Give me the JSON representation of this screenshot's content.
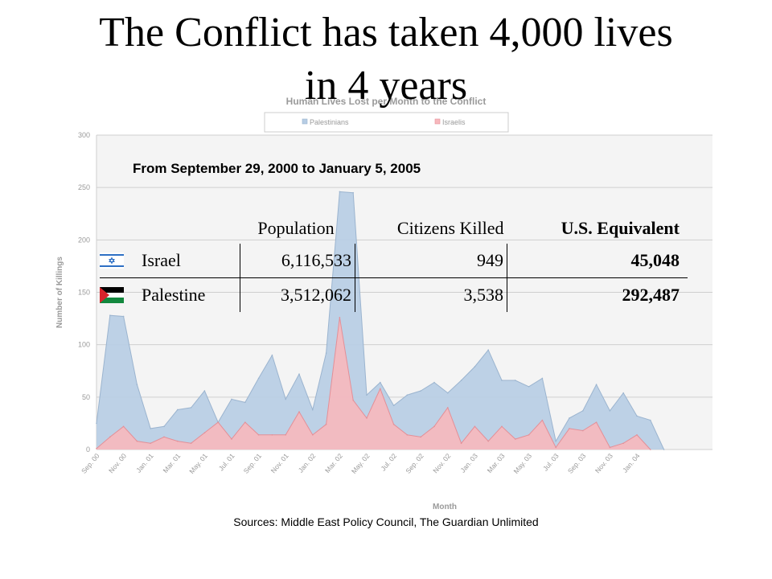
{
  "slide": {
    "title_line1": "The Conflict has taken 4,000 lives",
    "title_line2": "in 4 years",
    "period": "From September 29, 2000 to January 5, 2005",
    "sources": "Sources: Middle East Policy Council, The Guardian Unlimited"
  },
  "table": {
    "headers": [
      "Population",
      "Citizens Killed",
      "U.S. Equivalent"
    ],
    "rows": [
      {
        "country": "Israel",
        "flag": "israel-flag-icon",
        "population": "6,116,533",
        "killed": "949",
        "us_equivalent": "45,048"
      },
      {
        "country": "Palestine",
        "flag": "palestine-flag-icon",
        "population": "3,512,062",
        "killed": "3,538",
        "us_equivalent": "292,487"
      }
    ]
  },
  "chart_data": {
    "type": "area",
    "title": "Human Lives Lost per Month to the Conflict",
    "xlabel": "Month",
    "ylabel": "Number of Killings",
    "ylim": [
      0,
      300
    ],
    "yticks": [
      0,
      50,
      100,
      150,
      200,
      250,
      300
    ],
    "grid": true,
    "legend_position": "top",
    "x": [
      "Sep. 00",
      "Oct. 00",
      "Nov. 00",
      "Dec. 00",
      "Jan. 01",
      "Feb. 01",
      "Mar. 01",
      "Apr. 01",
      "May. 01",
      "Jun. 01",
      "Jul. 01",
      "Aug. 01",
      "Sep. 01",
      "Oct. 01",
      "Nov. 01",
      "Dec. 01",
      "Jan. 02",
      "Feb. 02",
      "Mar. 02",
      "Apr. 02",
      "May. 02",
      "Jun. 02",
      "Jul. 02",
      "Aug. 02",
      "Sep. 02",
      "Oct. 02",
      "Nov. 02",
      "Dec. 02",
      "Jan. 03",
      "Feb. 03",
      "Mar. 03",
      "Apr. 03",
      "May. 03",
      "Jun. 03",
      "Jul. 03",
      "Aug. 03",
      "Sep. 03",
      "Oct. 03",
      "Nov. 03",
      "Dec. 03",
      "Jan. 04",
      "Feb. 04",
      "Mar. 04",
      "Apr. 04",
      "May. 04"
    ],
    "xtick_labels": [
      "Sep. 00",
      "Nov. 00",
      "Jan. 01",
      "Mar. 01",
      "May. 01",
      "Jul. 01",
      "Sep. 01",
      "Nov. 01",
      "Jan. 02",
      "Mar. 02",
      "May. 02",
      "Jul. 02",
      "Sep. 02",
      "Nov. 02",
      "Jan. 03",
      "Mar. 03",
      "May. 03",
      "Jul. 03",
      "Sep. 03",
      "Nov. 03",
      "Jan. 04"
    ],
    "series": [
      {
        "name": "Palestinians",
        "color": "#b7cde4",
        "values": [
          25,
          128,
          127,
          62,
          20,
          22,
          38,
          40,
          56,
          26,
          48,
          45,
          68,
          90,
          48,
          72,
          38,
          92,
          246,
          245,
          52,
          64,
          42,
          52,
          56,
          64,
          54,
          66,
          79,
          95,
          66,
          66,
          60,
          68,
          8,
          30,
          37,
          62,
          37,
          54,
          32,
          28,
          0,
          0,
          0
        ]
      },
      {
        "name": "Israelis",
        "color": "#f7b8bd",
        "values": [
          1,
          12,
          22,
          8,
          6,
          12,
          8,
          6,
          16,
          26,
          10,
          26,
          14,
          14,
          14,
          36,
          14,
          24,
          126,
          47,
          30,
          58,
          24,
          14,
          12,
          22,
          40,
          6,
          22,
          8,
          22,
          10,
          14,
          28,
          2,
          20,
          18,
          26,
          2,
          6,
          14,
          0,
          0,
          0,
          0
        ]
      }
    ]
  },
  "colors": {
    "plot_bg": "#f4f4f4",
    "grid": "#cfcfcf",
    "axis_text": "#9a9a9a",
    "palestinian_line": "#9bb4cf",
    "israeli_line": "#e48f97"
  }
}
